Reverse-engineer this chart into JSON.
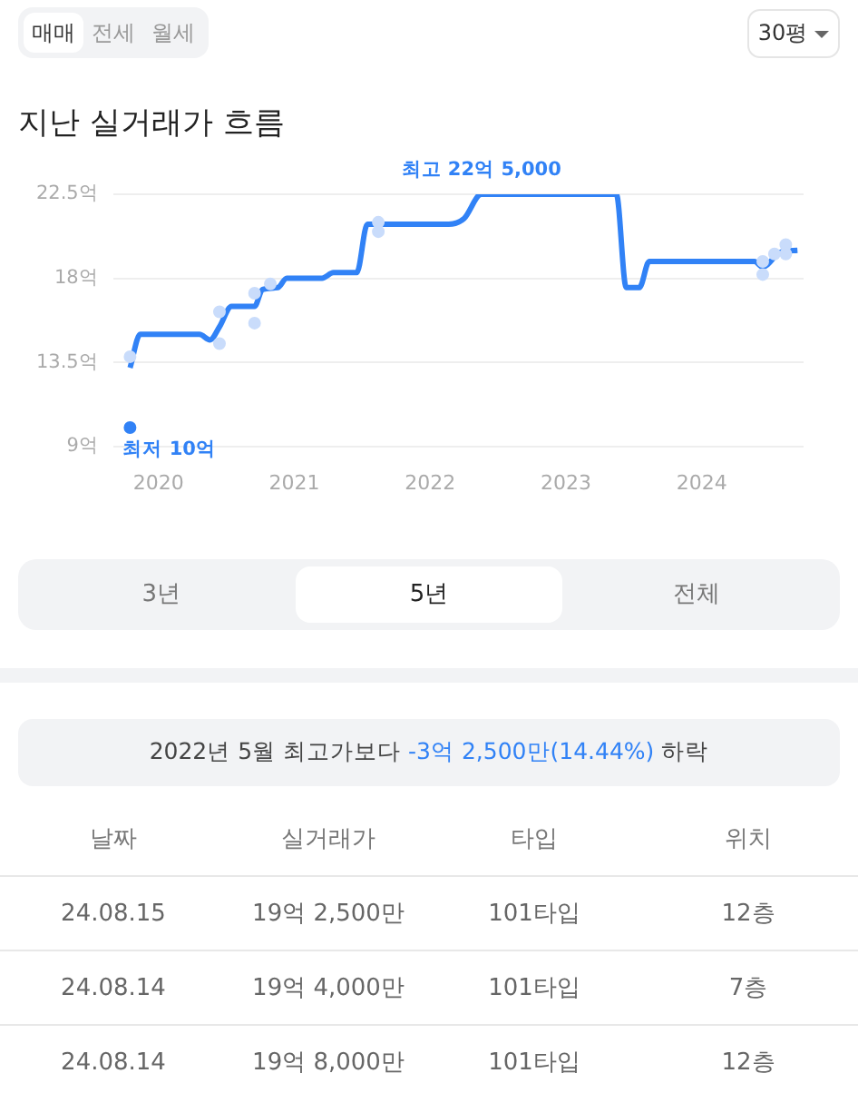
{
  "chart_data": {
    "type": "line",
    "title": "지난 실거래가 흐름",
    "xlim": [
      "2019-09",
      "2024-10"
    ],
    "xticks": [
      "2020",
      "2021",
      "2022",
      "2023",
      "2024"
    ],
    "ylim": [
      9,
      22.5
    ],
    "yticks": [
      {
        "value": 9,
        "label": "9억"
      },
      {
        "value": 13.5,
        "label": "13.5억"
      },
      {
        "value": 18,
        "label": "18억"
      },
      {
        "value": 22.5,
        "label": "22.5억"
      }
    ],
    "grid": "y",
    "series": [
      {
        "type": "scatter",
        "color": "#c9dcfb",
        "marker": "circle",
        "x": [
          "2019-10-16",
          "2020-06-13",
          "2020-06-13",
          "2020-09-16",
          "2020-09-16",
          "2020-10-28",
          "2021-08-14",
          "2021-08-14",
          "2024-06-13",
          "2024-06-13",
          "2024-07-14",
          "2024-08-14",
          "2024-08-14"
        ],
        "values": [
          13.8,
          16.2,
          14.5,
          17.2,
          15.6,
          17.7,
          21.0,
          20.5,
          18.9,
          18.2,
          19.3,
          19.8,
          19.3
        ]
      },
      {
        "color": "#3182f6",
        "marker": "none",
        "x": [
          "2019-10-16",
          "2019-11-13",
          "2020-04-20",
          "2020-05-18",
          "2020-06-13",
          "2020-07-15",
          "2020-09-16",
          "2020-10-07",
          "2020-11-18",
          "2020-12-11",
          "2021-03-15",
          "2021-04-15",
          "2021-06-17",
          "2021-07-15",
          "2022-02-21",
          "2022-04-01",
          "2022-05-17",
          "2023-05-15",
          "2023-06-11",
          "2023-07-16",
          "2023-08-12",
          "2024-05-21",
          "2024-06-13",
          "2024-07-30",
          "2024-09-15"
        ],
        "values": [
          13.2,
          15.0,
          15.0,
          14.7,
          15.4,
          16.5,
          16.5,
          17.4,
          17.5,
          18.0,
          18.0,
          18.3,
          18.3,
          20.9,
          20.9,
          21.2,
          22.5,
          22.5,
          17.5,
          17.5,
          18.9,
          18.9,
          18.6,
          19.4,
          19.5
        ]
      },
      {
        "type": "scatter",
        "color": "#3182f6",
        "marker": "circle",
        "x": [
          "2019-10-16"
        ],
        "values": [
          10
        ]
      }
    ],
    "annotations": [
      {
        "text": "최고 22억 5,000",
        "x": "2022-05-17",
        "y": 22.5
      },
      {
        "text": "최저 10억",
        "x": "2019-10-16",
        "y": 10
      },
      "매매",
      "전세",
      "월세",
      "30평",
      "3년",
      "5년",
      "전체",
      "2022년 5월 최고가보다",
      "-3억 2,500만(14.44%)",
      "하락",
      "날짜",
      "실거래가",
      "타입",
      "위치",
      "24.08.15",
      "19억 2,500만",
      "101타입",
      "12층",
      "24.08.14",
      "19억 4,000만",
      "101타입",
      "7층",
      "24.08.14",
      "19억 8,000만",
      "101타입",
      "12층"
    ]
  }
}
